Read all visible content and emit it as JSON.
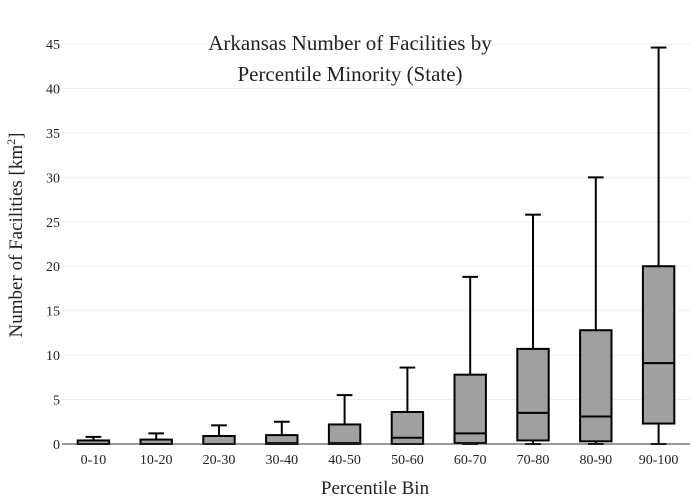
{
  "chart_data": {
    "type": "box",
    "title_lines": [
      "Arkansas Number of Facilities by",
      "Percentile Minority (State)"
    ],
    "xlabel": "Percentile Bin",
    "ylabel_main": "Number of Facilities  [km",
    "ylabel_sup": "2",
    "ylabel_end": "]",
    "ylim": [
      0,
      45
    ],
    "yticks": [
      0,
      5,
      10,
      15,
      20,
      25,
      30,
      35,
      40,
      45
    ],
    "ytick_labels": [
      "0",
      "5",
      "10",
      "15",
      "20",
      "25",
      "30",
      "35",
      "40",
      "45"
    ],
    "grid": true,
    "legend": "none",
    "colors": {
      "box_fill": "#a0a0a0",
      "stroke": "#000000",
      "grid": "#eeeeee"
    },
    "categories": [
      "0-10",
      "10-20",
      "20-30",
      "30-40",
      "40-50",
      "50-60",
      "60-70",
      "70-80",
      "80-90",
      "90-100"
    ],
    "boxes": [
      {
        "min": 0,
        "q1": 0,
        "median": 0,
        "q3": 0.4,
        "max": 0.8
      },
      {
        "min": 0,
        "q1": 0,
        "median": 0,
        "q3": 0.5,
        "max": 1.2
      },
      {
        "min": 0,
        "q1": 0,
        "median": 0,
        "q3": 0.9,
        "max": 2.1
      },
      {
        "min": 0,
        "q1": 0,
        "median": 0.1,
        "q3": 1.0,
        "max": 2.5
      },
      {
        "min": 0,
        "q1": 0,
        "median": 0.1,
        "q3": 2.2,
        "max": 5.5
      },
      {
        "min": 0,
        "q1": 0,
        "median": 0.7,
        "q3": 3.6,
        "max": 8.6
      },
      {
        "min": 0,
        "q1": 0.1,
        "median": 1.2,
        "q3": 7.8,
        "max": 18.8
      },
      {
        "min": 0,
        "q1": 0.4,
        "median": 3.5,
        "q3": 10.7,
        "max": 25.8
      },
      {
        "min": 0,
        "q1": 0.3,
        "median": 3.1,
        "q3": 12.8,
        "max": 30.0
      },
      {
        "min": 0,
        "q1": 2.3,
        "median": 9.1,
        "q3": 20.0,
        "max": 44.6
      }
    ]
  }
}
